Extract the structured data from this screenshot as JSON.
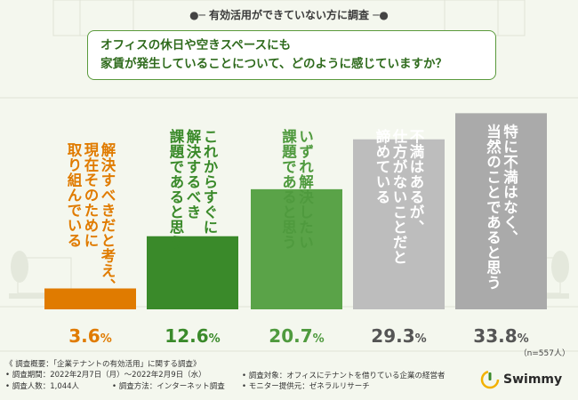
{
  "survey_label": "有効活用ができていない方に調査",
  "question": {
    "line1": "オフィスの休日や空きスペースにも",
    "line2": "家賃が発生していることについて、どのように感じていますか？"
  },
  "chart_data": {
    "type": "bar",
    "title": "オフィスの休日や空きスペースにも家賃が発生していることについて、どのように感じていますか？",
    "categories": [
      "解決すべきだと考え、現在そのために取り組んでいる",
      "これからすぐに解決するべき課題であると思う",
      "いずれ解決したい課題であると思う",
      "不満はあるが、仕方がないことだと諦めている",
      "特に不満はなく、当然のことであると思う"
    ],
    "category_lines": [
      [
        "解決すべきだと考え、",
        "現在そのために",
        "取り組んでいる"
      ],
      [
        "これからすぐに",
        "解決するべき",
        "課題であると思う"
      ],
      [
        "いずれ解決したい",
        "課題であると思う"
      ],
      [
        "不満はあるが、",
        "仕方がないことだと",
        "諦めている"
      ],
      [
        "特に不満はなく、",
        "当然のことであると思う"
      ]
    ],
    "values": [
      3.6,
      12.6,
      20.7,
      29.3,
      33.8
    ],
    "value_labels": [
      "3.6",
      "12.6",
      "20.7",
      "29.3",
      "33.8"
    ],
    "unit": "%",
    "ylim": [
      0,
      36
    ],
    "n_label": "（n=557人）",
    "colors": {
      "bars": [
        "#e07b00",
        "#3a8a2a",
        "#5aa348",
        "#bdbdbd",
        "#aaaaaa"
      ],
      "labels_text": [
        "#e07b00",
        "#3a8a2a",
        "#4f9a3e",
        "#ffffff",
        "#ffffff"
      ],
      "values_text": [
        "#e07b00",
        "#3a8a2a",
        "#4f9a3e",
        "#555555",
        "#555555"
      ]
    }
  },
  "footer": {
    "heading": "《 調査概要：「企業テナントの有効活用」に関する調査》",
    "period": "• 調査期間：2022年2月7日（月）～2022年2月9日（水）",
    "count": "• 調査人数：1,044人",
    "method": "• 調査方法：インターネット調査",
    "target": "• 調査対象：オフィスにテナントを借りている企業の経営者",
    "provider": "• モニター提供元：ゼネラルリサーチ"
  },
  "logo": {
    "text": "Swimmy"
  }
}
